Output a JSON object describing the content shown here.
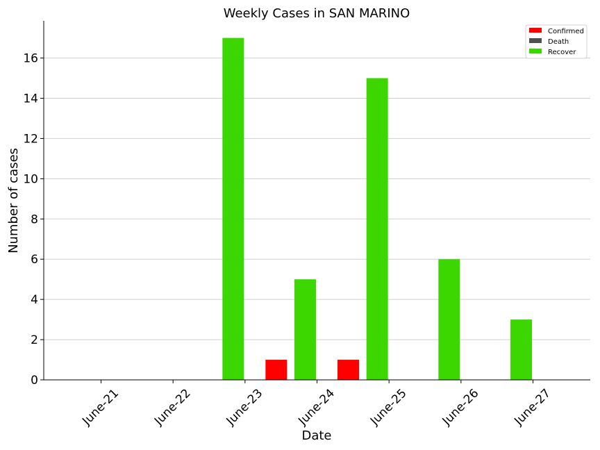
{
  "chart_data": {
    "type": "bar",
    "title": "Weekly Cases in SAN MARINO",
    "xlabel": "Date",
    "ylabel": "Number of cases",
    "categories": [
      "June-21",
      "June-22",
      "June-23",
      "June-24",
      "June-25",
      "June-26",
      "June-27"
    ],
    "series": [
      {
        "name": "Confirmed",
        "color": "#ff0000",
        "values": [
          0,
          0,
          1,
          1,
          0,
          0,
          0
        ]
      },
      {
        "name": "Death",
        "color": "#505050",
        "values": [
          0,
          0,
          0,
          0,
          0,
          0,
          0
        ]
      },
      {
        "name": "Recover",
        "color": "#3cd700",
        "values": [
          0,
          0,
          17,
          5,
          15,
          6,
          3
        ]
      }
    ],
    "ylim": [
      0,
      17.85
    ],
    "yticks": [
      0,
      2,
      4,
      6,
      8,
      10,
      12,
      14,
      16
    ],
    "grid": "horizontal",
    "legend_position": "top-right"
  }
}
